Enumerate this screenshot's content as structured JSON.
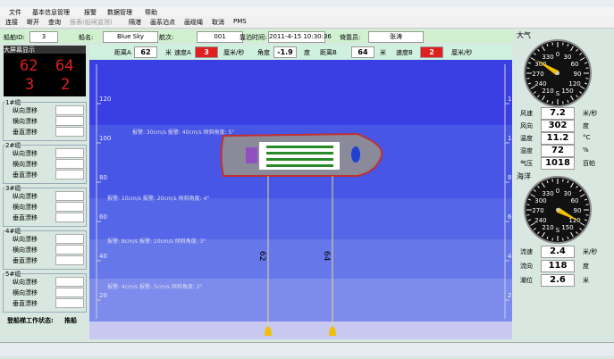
{
  "menu": [
    "文件",
    "基本信息管理",
    "报警",
    "数据管理",
    "帮助"
  ],
  "toolbar": [
    "连接",
    "断开",
    "查询",
    "报表(船闸监测)",
    "隔港",
    "画系泊点",
    "画缆绳",
    "取消",
    "PMS"
  ],
  "info": {
    "ship_id": {
      "label": "船舶ID:",
      "value": "3"
    },
    "ship_name": {
      "label": "船名:",
      "value": "Blue Sky"
    },
    "voyage": {
      "label": "航次:",
      "value": "001"
    },
    "berth_time": {
      "label": "靠泊时间:",
      "value": "2011-4-15 10:30:36"
    },
    "operator": {
      "label": "倚靠员:",
      "value": "张涛"
    }
  },
  "readings": {
    "dist_a": {
      "label": "距离A",
      "value": 62,
      "unit": "米"
    },
    "speed_a": {
      "label": "速度A",
      "value": 3,
      "unit": "厘米/秒"
    },
    "angle": {
      "label": "角度",
      "value": -1.9,
      "unit": "度"
    },
    "dist_b": {
      "label": "距离B",
      "value": 64,
      "unit": "米"
    },
    "speed_b": {
      "label": "速度B",
      "value": 2,
      "unit": "厘米/秒"
    }
  },
  "big_screen": {
    "title": "大屏幕显示"
  },
  "cables": [
    {
      "name": "1#缆",
      "rows": [
        "纵向漂移",
        "横向漂移",
        "垂直漂移"
      ]
    },
    {
      "name": "2#缆",
      "rows": [
        "纵向漂移",
        "横向漂移",
        "垂直漂移"
      ]
    },
    {
      "name": "3#缆",
      "rows": [
        "纵向漂移",
        "横向漂移",
        "垂直漂移"
      ]
    },
    {
      "name": "4#缆",
      "rows": [
        "纵向漂移",
        "横向漂移",
        "垂直漂移"
      ]
    },
    {
      "name": "5#缆",
      "rows": [
        "纵向漂移",
        "横向漂移",
        "垂直漂移"
      ]
    }
  ],
  "ladder_status": {
    "label": "登船梯工作状态:",
    "value": "推船"
  },
  "ruler": [
    120,
    100,
    80,
    60,
    40,
    20
  ],
  "zones": [
    "报警: 30cm/s    报警: 40cm/s    倾斜角度: 5°",
    "报警: 10cm/s    报警: 20cm/s    倾斜角度: 4°",
    "报警: 8cm/s    报警: 10cm/s    倾斜角度: 3°",
    "报警: 4cm/s    报警: 5cm/s    倾斜角度: 2°"
  ],
  "atmosphere": {
    "title": "大气",
    "dial": [
      "0",
      "30",
      "60",
      "90",
      "120",
      "150",
      "S",
      "210",
      "240",
      "270",
      "300",
      "330"
    ],
    "rows": [
      {
        "label": "风速",
        "value": 7.2,
        "unit": "米/秒"
      },
      {
        "label": "风向",
        "value": 302,
        "unit": "度"
      },
      {
        "label": "温度",
        "value": 11.2,
        "unit": "°C"
      },
      {
        "label": "湿度",
        "value": 72,
        "unit": "%"
      },
      {
        "label": "气压",
        "value": 1018,
        "unit": "百帕"
      }
    ]
  },
  "ocean": {
    "title": "海洋",
    "dial": [
      "0",
      "30",
      "60",
      "90",
      "120",
      "150",
      "S",
      "210",
      "240",
      "270",
      "300",
      "330"
    ],
    "rows": [
      {
        "label": "流速",
        "value": 2.4,
        "unit": "米/秒"
      },
      {
        "label": "流向",
        "value": 118,
        "unit": "度"
      },
      {
        "label": "潮位",
        "value": 2.6,
        "unit": "米"
      }
    ]
  }
}
